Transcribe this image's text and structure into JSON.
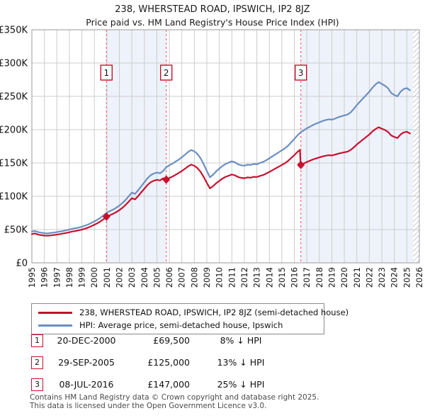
{
  "chart_data": {
    "type": "line",
    "title": "238, WHERSTEAD ROAD, IPSWICH, IP2 8JZ",
    "subtitle": "Price paid vs. HM Land Registry's House Price Index (HPI)",
    "y_unit": "GBP thousands",
    "ylim": [
      0,
      350
    ],
    "ytick_step": 50,
    "ytick_labels": [
      "£350K",
      "£300K",
      "£250K",
      "£200K",
      "£150K",
      "£100K",
      "£50K",
      "£0"
    ],
    "xlim": [
      1995,
      2026
    ],
    "xticks": [
      1995,
      1996,
      1997,
      1998,
      1999,
      2000,
      2001,
      2002,
      2003,
      2004,
      2005,
      2006,
      2007,
      2008,
      2009,
      2010,
      2011,
      2012,
      2013,
      2014,
      2015,
      2016,
      2017,
      2018,
      2019,
      2020,
      2021,
      2022,
      2023,
      2024,
      2025,
      2026
    ],
    "x": [
      1995,
      1995.25,
      1995.5,
      1995.75,
      1996,
      1996.25,
      1996.5,
      1996.75,
      1997,
      1997.25,
      1997.5,
      1997.75,
      1998,
      1998.25,
      1998.5,
      1998.75,
      1999,
      1999.25,
      1999.5,
      1999.75,
      2000,
      2000.25,
      2000.5,
      2000.75,
      2001,
      2001.25,
      2001.5,
      2001.75,
      2002,
      2002.25,
      2002.5,
      2002.75,
      2003,
      2003.25,
      2003.5,
      2003.75,
      2004,
      2004.25,
      2004.5,
      2004.75,
      2005,
      2005.25,
      2005.5,
      2005.75,
      2006,
      2006.25,
      2006.5,
      2006.75,
      2007,
      2007.25,
      2007.5,
      2007.75,
      2008,
      2008.25,
      2008.5,
      2008.75,
      2009,
      2009.25,
      2009.5,
      2009.75,
      2010,
      2010.25,
      2010.5,
      2010.75,
      2011,
      2011.25,
      2011.5,
      2011.75,
      2012,
      2012.25,
      2012.5,
      2012.75,
      2013,
      2013.25,
      2013.5,
      2013.75,
      2014,
      2014.25,
      2014.5,
      2014.75,
      2015,
      2015.25,
      2015.5,
      2015.75,
      2016,
      2016.25,
      2016.45,
      2016.5,
      2016.75,
      2017,
      2017.25,
      2017.5,
      2017.75,
      2018,
      2018.25,
      2018.5,
      2018.75,
      2019,
      2019.25,
      2019.5,
      2019.75,
      2020,
      2020.25,
      2020.5,
      2020.75,
      2021,
      2021.25,
      2021.5,
      2021.75,
      2022,
      2022.25,
      2022.5,
      2022.75,
      2023,
      2023.25,
      2023.5,
      2023.75,
      2024,
      2024.25,
      2024.5,
      2024.75,
      2025,
      2025.25
    ],
    "series": [
      {
        "id": "price-paid",
        "name": "238, WHERSTEAD ROAD, IPSWICH, IP2 8JZ (semi-detached house)",
        "color": "#c8102e",
        "values": [
          43.2,
          44.0,
          42.5,
          41.6,
          41.0,
          40.7,
          41.2,
          41.8,
          42.5,
          43.2,
          44.0,
          44.9,
          46.0,
          47.1,
          47.8,
          48.8,
          49.9,
          51.3,
          53.0,
          55.0,
          57.2,
          59.6,
          62.4,
          65.8,
          69.5,
          71.6,
          73.6,
          76.2,
          79.1,
          82.8,
          86.9,
          92.0,
          97.1,
          95.2,
          100.3,
          105.8,
          111.3,
          116.8,
          121.0,
          123.3,
          124.7,
          123.7,
          127.0,
          124.9,
          127.5,
          129.6,
          132.2,
          134.9,
          137.9,
          141.4,
          144.9,
          147.5,
          145.7,
          142.2,
          136.6,
          128.8,
          120.1,
          111.8,
          115.3,
          119.6,
          123.1,
          126.6,
          129.2,
          130.9,
          132.7,
          131.4,
          128.8,
          127.5,
          127.0,
          128.3,
          127.9,
          129.2,
          128.8,
          130.5,
          131.8,
          134.0,
          136.6,
          139.2,
          141.8,
          144.4,
          147.0,
          149.6,
          153.1,
          157.5,
          161.8,
          166.6,
          169.7,
          147.0,
          149.3,
          151.5,
          153.4,
          155.3,
          156.8,
          158.3,
          159.8,
          160.9,
          161.6,
          161.3,
          162.4,
          163.9,
          165.0,
          166.1,
          166.9,
          169.5,
          173.3,
          177.8,
          181.5,
          185.3,
          189.0,
          192.8,
          197.3,
          201.0,
          203.6,
          201.4,
          199.5,
          196.5,
          191.3,
          189.0,
          187.5,
          192.8,
          195.8,
          196.9,
          194.3
        ]
      },
      {
        "id": "hpi",
        "name": "HPI: Average price, semi-detached house, Ipswich",
        "color": "#6a8fc2",
        "values": [
          47.0,
          47.8,
          46.2,
          45.2,
          44.6,
          44.2,
          44.8,
          45.4,
          46.2,
          47.0,
          47.8,
          48.8,
          50.0,
          51.2,
          52.0,
          53.0,
          54.2,
          55.8,
          57.6,
          59.8,
          62.2,
          64.8,
          67.8,
          71.5,
          75.5,
          77.8,
          80.0,
          82.8,
          86.0,
          90.0,
          94.5,
          100.0,
          105.5,
          103.5,
          109.0,
          115.0,
          121.0,
          127.0,
          131.5,
          134.0,
          135.5,
          134.5,
          138.0,
          143.5,
          146.5,
          149.0,
          152.0,
          155.0,
          158.5,
          162.5,
          166.5,
          169.5,
          167.5,
          163.5,
          157.0,
          148.0,
          138.0,
          128.5,
          132.5,
          137.5,
          141.5,
          145.5,
          148.5,
          150.5,
          152.5,
          151.0,
          148.0,
          146.5,
          146.0,
          147.5,
          147.0,
          148.5,
          148.0,
          150.0,
          151.5,
          154.0,
          157.0,
          160.0,
          163.0,
          166.0,
          169.0,
          172.0,
          176.0,
          181.0,
          186.0,
          191.5,
          195.0,
          196.0,
          199.0,
          202.0,
          204.5,
          207.0,
          209.0,
          211.0,
          213.0,
          214.5,
          215.5,
          215.0,
          216.5,
          218.5,
          220.0,
          221.5,
          222.5,
          226.0,
          231.0,
          237.0,
          242.0,
          247.0,
          252.0,
          257.0,
          263.0,
          268.0,
          271.5,
          268.5,
          266.0,
          262.0,
          255.0,
          252.0,
          250.0,
          257.0,
          261.0,
          262.5,
          259.0
        ]
      }
    ],
    "sales": [
      {
        "n": "1",
        "x": 2000.97,
        "y": 69.5,
        "date": "20-DEC-2000",
        "price": "£69,500",
        "hpi_diff": "8% ↓ HPI"
      },
      {
        "n": "2",
        "x": 2005.75,
        "y": 125.0,
        "date": "29-SEP-2005",
        "price": "£125,000",
        "hpi_diff": "13% ↓ HPI"
      },
      {
        "n": "3",
        "x": 2016.52,
        "y": 147.0,
        "date": "08-JUL-2016",
        "price": "£147,000",
        "hpi_diff": "25% ↓ HPI"
      }
    ],
    "bands": [
      [
        2000.97,
        2005.75
      ],
      [
        2016.52,
        2025.5
      ]
    ],
    "hatch": [
      2025.5,
      2026
    ],
    "legend_position": "bottom",
    "grid": true,
    "colors": {
      "band": "#eef2fb",
      "grid": "#cccccc",
      "border": "#999999",
      "marker_line": "#f07070",
      "badge_border": "#c8102e",
      "hatch": "#c5c9d4"
    }
  },
  "footer": {
    "line1": "Contains HM Land Registry data © Crown copyright and database right 2025.",
    "line2": "This data is licensed under the Open Government Licence v3.0."
  }
}
